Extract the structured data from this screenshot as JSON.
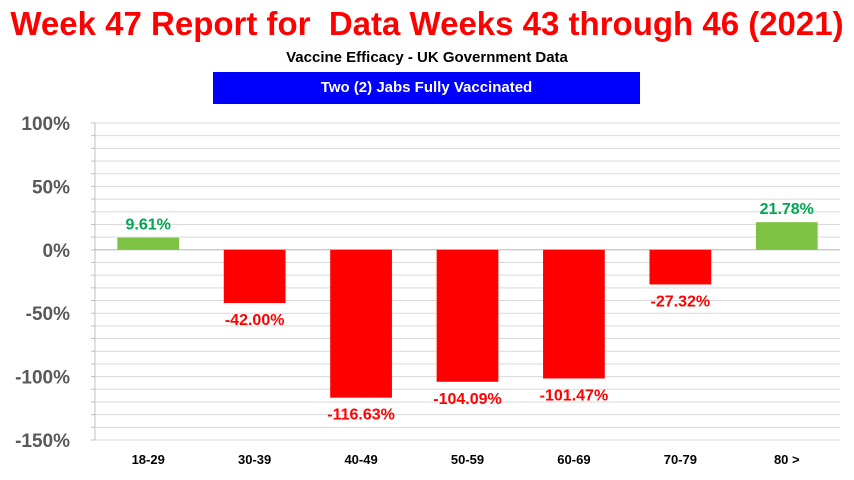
{
  "header": {
    "title": "Week 47 Report for  Data Weeks 43 through 46 (2021)",
    "subtitle": "Vaccine Efficacy - UK Government Data",
    "banner": "Two (2) Jabs Fully Vaccinated"
  },
  "colors": {
    "title": "#ff0000",
    "banner_bg": "#0000ff",
    "banner_text": "#ffffff",
    "positive_bar": "#7dc242",
    "negative_bar": "#ff0000",
    "positive_label": "#00a651",
    "negative_label": "#ff0000",
    "grid": "#d9d9d9",
    "tick_text": "#595959"
  },
  "chart_data": {
    "type": "bar",
    "categories": [
      "18-29",
      "30-39",
      "40-49",
      "50-59",
      "60-69",
      "70-79",
      "80 >"
    ],
    "values": [
      9.61,
      -42.0,
      -116.63,
      -104.09,
      -101.47,
      -27.32,
      21.78
    ],
    "data_labels": [
      "9.61%",
      "-42.00%",
      "-116.63%",
      "-104.09%",
      "-101.47%",
      "-27.32%",
      "21.78%"
    ],
    "ylim": [
      -150,
      100
    ],
    "yticks": [
      100,
      50,
      0,
      -50,
      -100,
      -150
    ],
    "ytick_labels": [
      "100%",
      "50%",
      "0%",
      "-50%",
      "-100%",
      "-150%"
    ],
    "grid": true,
    "xlabel": "",
    "ylabel": ""
  }
}
